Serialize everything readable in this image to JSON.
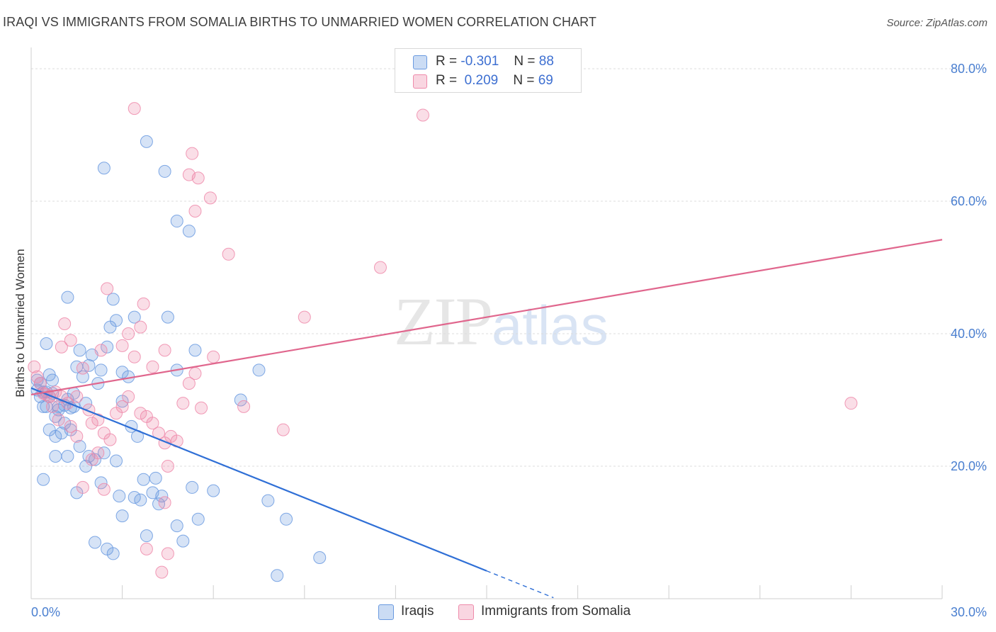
{
  "title": "IRAQI VS IMMIGRANTS FROM SOMALIA BIRTHS TO UNMARRIED WOMEN CORRELATION CHART",
  "source": "Source: ZipAtlas.com",
  "watermark": {
    "zip": "ZIP",
    "atlas": "atlas"
  },
  "legend": [
    {
      "r_label": "R =",
      "r_value": "-0.301",
      "n_label": "N =",
      "n_value": "88",
      "color": "#6a9ae0"
    },
    {
      "r_label": "R =",
      "r_value": "0.209",
      "n_label": "N =",
      "n_value": "69",
      "color": "#ee8aaa"
    }
  ],
  "bottom_legend": [
    {
      "label": "Iraqis",
      "color": "#6a9ae0"
    },
    {
      "label": "Immigrants from Somalia",
      "color": "#ee8aaa"
    }
  ],
  "chart_data": {
    "type": "scatter",
    "title": "IRAQI VS IMMIGRANTS FROM SOMALIA BIRTHS TO UNMARRIED WOMEN CORRELATION CHART",
    "xlabel": "",
    "ylabel": "Births to Unmarried Women",
    "xlim": [
      0,
      30
    ],
    "ylim": [
      0,
      80
    ],
    "x_tick_labels": [
      "0.0%",
      "30.0%"
    ],
    "y_ticks": [
      20,
      40,
      60,
      80
    ],
    "y_tick_labels": [
      "20.0%",
      "40.0%",
      "60.0%",
      "80.0%"
    ],
    "grid": true,
    "legend_position": "top-center",
    "series": [
      {
        "name": "Iraqis",
        "color": "#6a9ae0",
        "trend": {
          "x0": 0,
          "y0": 31.8,
          "x1": 15,
          "y1": 4.2,
          "dash_to_x": 17.2
        },
        "points": [
          [
            0.3,
            32.5
          ],
          [
            0.4,
            31.2
          ],
          [
            0.5,
            29.0
          ],
          [
            0.6,
            30.5
          ],
          [
            0.7,
            33.0
          ],
          [
            0.8,
            27.5
          ],
          [
            0.9,
            29.0
          ],
          [
            1.0,
            25.0
          ],
          [
            1.2,
            30.1
          ],
          [
            1.3,
            28.8
          ],
          [
            1.4,
            31.0
          ],
          [
            1.5,
            35.0
          ],
          [
            1.6,
            37.5
          ],
          [
            1.7,
            33.5
          ],
          [
            1.8,
            29.5
          ],
          [
            2.0,
            36.8
          ],
          [
            2.2,
            32.5
          ],
          [
            2.3,
            34.5
          ],
          [
            2.5,
            38.0
          ],
          [
            2.6,
            41.0
          ],
          [
            2.7,
            45.2
          ],
          [
            2.8,
            42.0
          ],
          [
            3.0,
            34.2
          ],
          [
            3.2,
            33.5
          ],
          [
            0.5,
            38.5
          ],
          [
            1.2,
            45.5
          ],
          [
            1.9,
            21.5
          ],
          [
            2.1,
            21.0
          ],
          [
            2.4,
            22.0
          ],
          [
            2.8,
            20.8
          ],
          [
            3.0,
            29.8
          ],
          [
            3.3,
            26.0
          ],
          [
            3.5,
            24.5
          ],
          [
            3.7,
            18.0
          ],
          [
            4.1,
            18.2
          ],
          [
            4.3,
            15.5
          ],
          [
            4.2,
            14.3
          ],
          [
            3.4,
            15.3
          ],
          [
            3.6,
            14.9
          ],
          [
            2.9,
            15.5
          ],
          [
            3.0,
            12.5
          ],
          [
            3.8,
            9.5
          ],
          [
            4.0,
            16.0
          ],
          [
            1.5,
            16.0
          ],
          [
            1.8,
            20.0
          ],
          [
            0.4,
            18.0
          ],
          [
            1.2,
            21.5
          ],
          [
            2.3,
            17.5
          ],
          [
            2.5,
            7.5
          ],
          [
            2.7,
            6.8
          ],
          [
            4.8,
            11.0
          ],
          [
            5.0,
            8.7
          ],
          [
            5.5,
            12.0
          ],
          [
            5.3,
            16.8
          ],
          [
            6.0,
            16.3
          ],
          [
            7.8,
            14.8
          ],
          [
            8.4,
            12.0
          ],
          [
            9.5,
            6.2
          ],
          [
            8.1,
            3.5
          ],
          [
            6.9,
            30.0
          ],
          [
            7.5,
            34.5
          ],
          [
            4.8,
            57.0
          ],
          [
            4.4,
            64.5
          ],
          [
            3.8,
            69.0
          ],
          [
            2.4,
            65.0
          ],
          [
            5.2,
            55.5
          ],
          [
            4.5,
            42.5
          ],
          [
            3.4,
            42.5
          ],
          [
            5.4,
            37.5
          ],
          [
            4.8,
            34.5
          ],
          [
            0.2,
            31.5
          ],
          [
            0.3,
            30.5
          ],
          [
            0.4,
            29.0
          ],
          [
            0.7,
            31.0
          ],
          [
            0.9,
            28.5
          ],
          [
            1.1,
            26.5
          ],
          [
            1.3,
            25.5
          ],
          [
            1.6,
            23.0
          ],
          [
            0.6,
            25.5
          ],
          [
            0.8,
            21.5
          ],
          [
            1.1,
            29.2
          ],
          [
            0.2,
            33.0
          ],
          [
            0.5,
            31.2
          ],
          [
            0.6,
            33.8
          ],
          [
            1.4,
            29.0
          ],
          [
            2.1,
            8.5
          ],
          [
            0.8,
            24.5
          ],
          [
            1.9,
            35.2
          ]
        ]
      },
      {
        "name": "Immigrants from Somalia",
        "color": "#ee8aaa",
        "trend": {
          "x0": 0,
          "y0": 30.8,
          "x1": 30,
          "y1": 54.2
        },
        "points": [
          [
            0.1,
            35.0
          ],
          [
            0.2,
            33.5
          ],
          [
            0.3,
            32.5
          ],
          [
            0.4,
            31.0
          ],
          [
            0.6,
            30.5
          ],
          [
            0.8,
            31.2
          ],
          [
            1.0,
            30.5
          ],
          [
            1.2,
            29.5
          ],
          [
            1.5,
            30.5
          ],
          [
            1.7,
            34.8
          ],
          [
            1.9,
            28.5
          ],
          [
            2.0,
            26.5
          ],
          [
            2.2,
            27.0
          ],
          [
            2.4,
            25.0
          ],
          [
            2.6,
            24.0
          ],
          [
            2.8,
            28.0
          ],
          [
            3.0,
            29.0
          ],
          [
            3.2,
            30.5
          ],
          [
            3.4,
            36.5
          ],
          [
            3.6,
            28.0
          ],
          [
            3.8,
            27.5
          ],
          [
            4.0,
            26.5
          ],
          [
            4.2,
            25.0
          ],
          [
            4.4,
            23.5
          ],
          [
            4.6,
            24.5
          ],
          [
            4.8,
            23.8
          ],
          [
            5.0,
            29.5
          ],
          [
            5.2,
            32.5
          ],
          [
            5.4,
            34.0
          ],
          [
            5.6,
            28.8
          ],
          [
            1.1,
            41.5
          ],
          [
            1.3,
            39.0
          ],
          [
            2.3,
            37.5
          ],
          [
            2.5,
            46.8
          ],
          [
            3.2,
            40.0
          ],
          [
            3.6,
            41.0
          ],
          [
            3.7,
            44.5
          ],
          [
            4.0,
            35.0
          ],
          [
            4.4,
            37.5
          ],
          [
            6.0,
            36.5
          ],
          [
            6.5,
            52.0
          ],
          [
            5.5,
            63.5
          ],
          [
            5.9,
            60.5
          ],
          [
            5.4,
            58.5
          ],
          [
            5.2,
            64.0
          ],
          [
            5.3,
            67.2
          ],
          [
            3.4,
            74.0
          ],
          [
            11.5,
            50.0
          ],
          [
            12.9,
            73.0
          ],
          [
            9.0,
            42.5
          ],
          [
            8.3,
            25.5
          ],
          [
            7.0,
            29.0
          ],
          [
            4.5,
            20.0
          ],
          [
            3.8,
            7.5
          ],
          [
            4.3,
            4.0
          ],
          [
            4.5,
            6.8
          ],
          [
            2.0,
            21.0
          ],
          [
            2.2,
            22.0
          ],
          [
            1.7,
            16.8
          ],
          [
            2.4,
            16.5
          ],
          [
            4.4,
            14.5
          ],
          [
            3.0,
            38.2
          ],
          [
            1.0,
            38.0
          ],
          [
            0.5,
            30.8
          ],
          [
            0.7,
            29.0
          ],
          [
            0.9,
            27.0
          ],
          [
            1.3,
            26.0
          ],
          [
            1.5,
            24.5
          ],
          [
            27.0,
            29.5
          ]
        ]
      }
    ]
  }
}
